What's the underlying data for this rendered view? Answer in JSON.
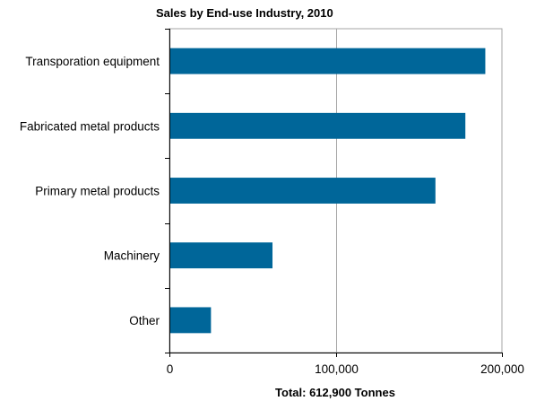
{
  "chart_data": {
    "type": "bar",
    "orientation": "horizontal",
    "title": "Sales by End-use Industry, 2010",
    "xlabel": "Total: 612,900 Tonnes",
    "ylabel": "",
    "categories": [
      "Transporation equipment",
      "Fabricated metal products",
      "Primary metal products",
      "Machinery",
      "Other"
    ],
    "values": [
      190000,
      178000,
      160000,
      62000,
      25000
    ],
    "xlim": [
      0,
      200000
    ],
    "xticks": [
      0,
      100000,
      200000
    ],
    "xtick_labels": [
      "0",
      "100,000",
      "200,000"
    ],
    "grid": "vertical gridline at 100,000",
    "legend": "none",
    "bar_color": "#006699",
    "grid_color": "#a6a6a6",
    "axis_color": "#000000"
  }
}
